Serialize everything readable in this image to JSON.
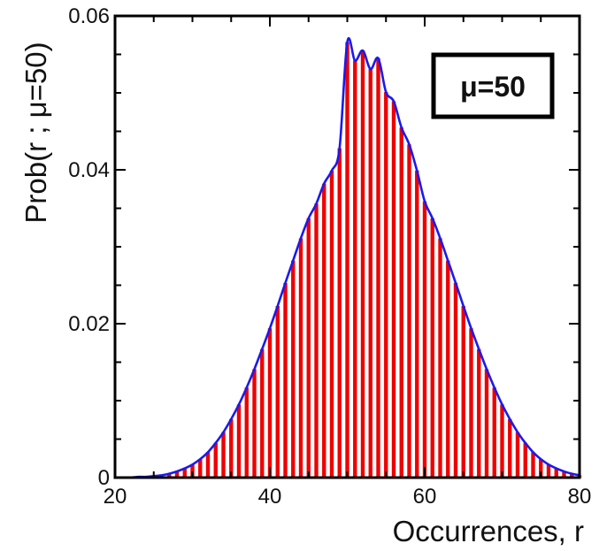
{
  "chart_data": {
    "type": "bar",
    "subtype": "histogram-with-fit-curve",
    "xlabel": "Occurrences, r",
    "ylabel": "Prob(r ; μ=50)",
    "xlim": [
      20,
      80
    ],
    "ylim": [
      0,
      0.06
    ],
    "x_ticks": [
      "20",
      "40",
      "60",
      "80"
    ],
    "y_ticks": [
      "0",
      "0.02",
      "0.04",
      "0.06"
    ],
    "annotation": "μ=50",
    "grid": false,
    "colors": {
      "bars": "#ee0000",
      "curve": "#1a1aee",
      "axes": "#000000"
    },
    "x": [
      20,
      21,
      22,
      23,
      24,
      25,
      26,
      27,
      28,
      29,
      30,
      31,
      32,
      33,
      34,
      35,
      36,
      37,
      38,
      39,
      40,
      41,
      42,
      43,
      44,
      45,
      46,
      47,
      48,
      49,
      50,
      51,
      52,
      53,
      54,
      55,
      56,
      57,
      58,
      59,
      60,
      61,
      62,
      63,
      64,
      65,
      66,
      67,
      68,
      69,
      70,
      71,
      72,
      73,
      74,
      75,
      76,
      77,
      78,
      79,
      80
    ],
    "series": [
      {
        "kind": "bars",
        "values": [
          0.0,
          0.0,
          0.0,
          0.0001,
          0.0001,
          0.0002,
          0.0003,
          0.0005,
          0.0008,
          0.0012,
          0.0017,
          0.0024,
          0.0033,
          0.0045,
          0.0059,
          0.0076,
          0.0095,
          0.0117,
          0.0141,
          0.0167,
          0.0194,
          0.0223,
          0.0253,
          0.0282,
          0.0311,
          0.0337,
          0.0356,
          0.0382,
          0.0399,
          0.0428,
          0.0566,
          0.0542,
          0.0555,
          0.0531,
          0.0545,
          0.0501,
          0.0489,
          0.0455,
          0.0433,
          0.0399,
          0.0359,
          0.0337,
          0.0311,
          0.0282,
          0.0253,
          0.0223,
          0.0194,
          0.0167,
          0.0141,
          0.0117,
          0.0095,
          0.0076,
          0.0059,
          0.0045,
          0.0033,
          0.0024,
          0.0017,
          0.0012,
          0.0008,
          0.0005,
          0.0003
        ]
      },
      {
        "kind": "curve",
        "values": [
          0.0,
          0.0,
          0.0,
          0.0001,
          0.0001,
          0.0002,
          0.0003,
          0.0005,
          0.0008,
          0.0012,
          0.0017,
          0.0024,
          0.0033,
          0.0045,
          0.0059,
          0.0076,
          0.0095,
          0.0117,
          0.0141,
          0.0167,
          0.0194,
          0.0223,
          0.0253,
          0.0282,
          0.0311,
          0.0337,
          0.0356,
          0.0382,
          0.0399,
          0.0428,
          0.0566,
          0.0542,
          0.0555,
          0.0531,
          0.0545,
          0.0501,
          0.0489,
          0.0455,
          0.0433,
          0.0399,
          0.0359,
          0.0337,
          0.0311,
          0.0282,
          0.0253,
          0.0223,
          0.0194,
          0.0167,
          0.0141,
          0.0117,
          0.0095,
          0.0076,
          0.0059,
          0.0045,
          0.0033,
          0.0024,
          0.0017,
          0.0012,
          0.0008,
          0.0005,
          0.0003
        ]
      }
    ]
  }
}
